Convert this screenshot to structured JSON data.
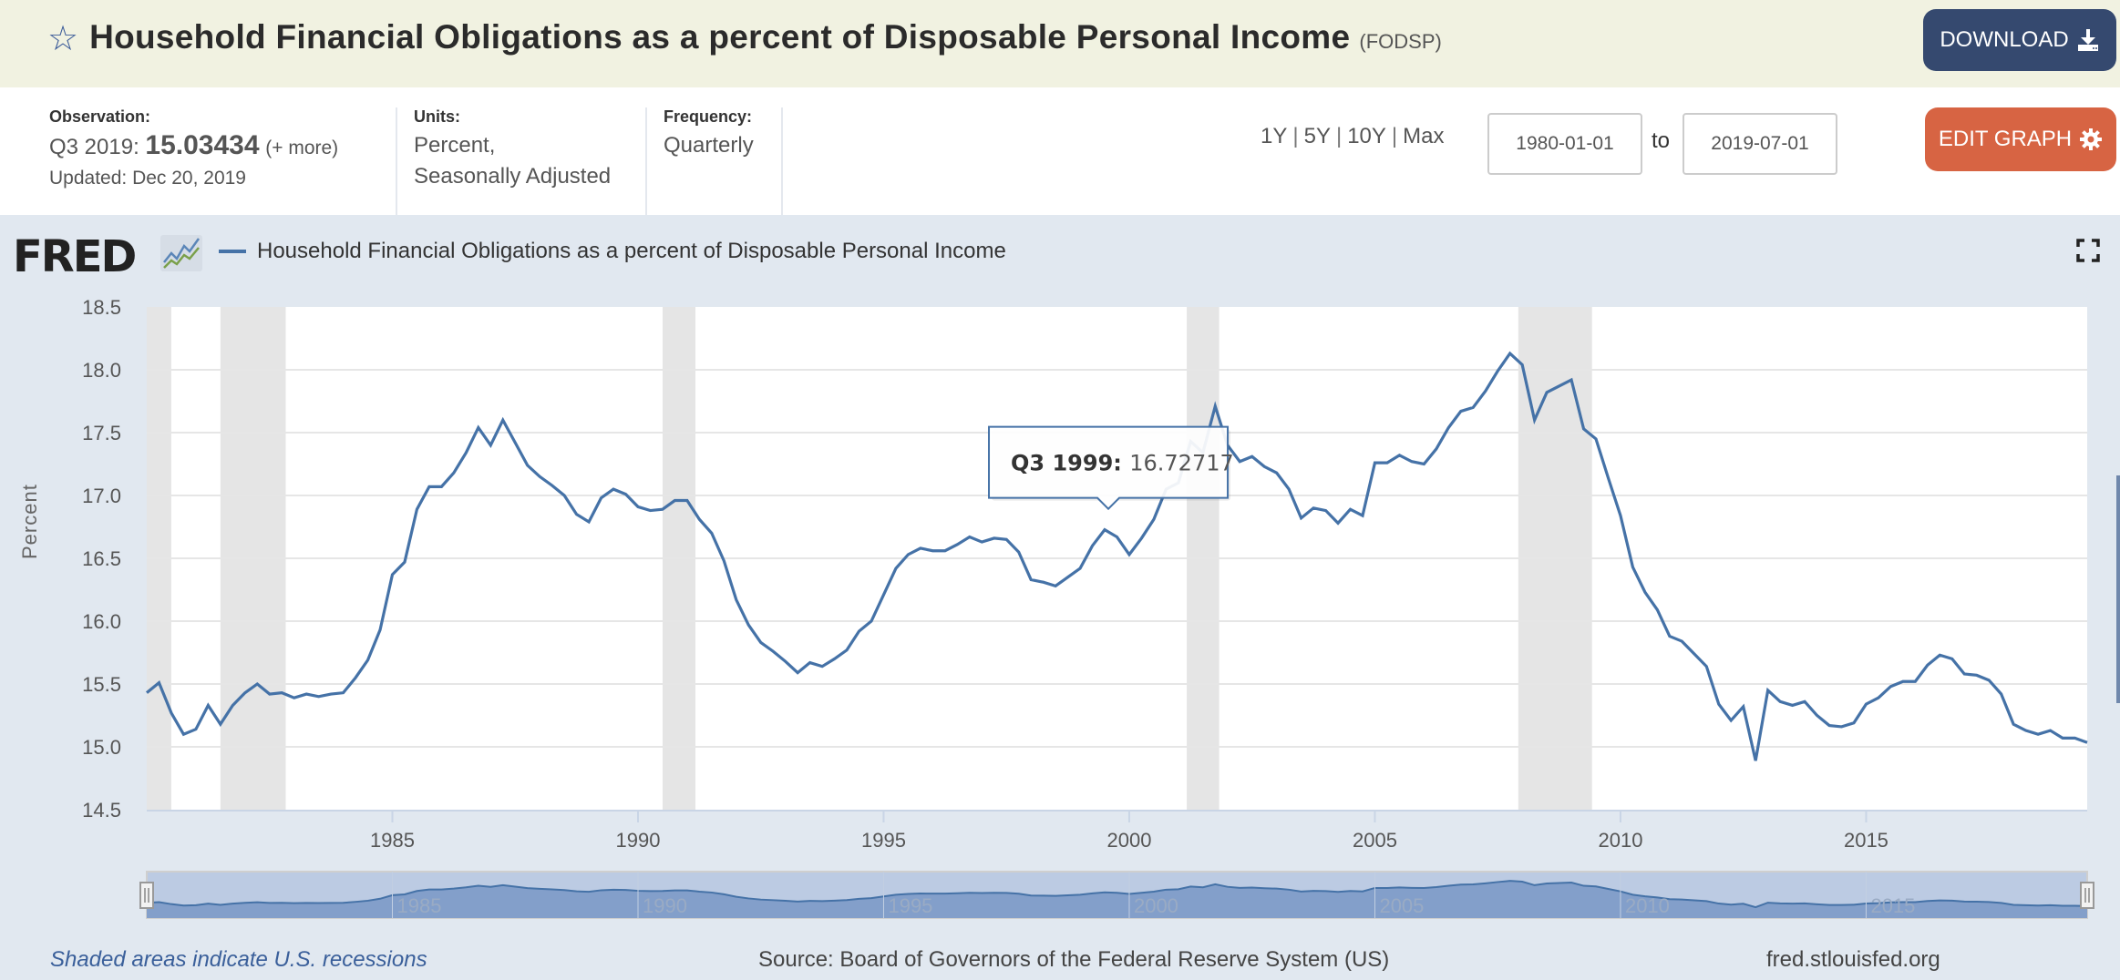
{
  "header": {
    "title": "Household Financial Obligations as a percent of Disposable Personal Income",
    "series_id": "(FODSP)",
    "favorite_icon": "star-outline-icon",
    "download_label": "DOWNLOAD",
    "download_icon": "download-icon"
  },
  "info": {
    "observation_label": "Observation:",
    "observation_period": "Q3 2019:",
    "observation_value": "15.03434",
    "observation_more": "(+ more)",
    "updated": "Updated: Dec 20, 2019",
    "units_label": "Units:",
    "units_line1": "Percent,",
    "units_line2": "Seasonally Adjusted",
    "frequency_label": "Frequency:",
    "frequency_value": "Quarterly"
  },
  "range_controls": {
    "presets": [
      "1Y",
      "5Y",
      "10Y",
      "Max"
    ],
    "start_date": "1980-01-01",
    "to_label": "to",
    "end_date": "2019-07-01",
    "edit_graph_label": "EDIT GRAPH",
    "edit_graph_icon": "gear-icon"
  },
  "chart_header": {
    "logo_text": "FRED",
    "legend_label": "Household Financial Obligations as a percent of Disposable Personal Income",
    "fullscreen_icon": "fullscreen-icon"
  },
  "tooltip": {
    "period": "Q3 1999:",
    "value": "16.72717"
  },
  "footer": {
    "recession_note": "Shaded areas indicate U.S. recessions",
    "source": "Source: Board of Governors of the Federal Reserve System (US)",
    "url": "fred.stlouisfed.org"
  },
  "colors": {
    "series": "#4572a7",
    "recession": "#e5e5e5",
    "download_button": "#35496f",
    "edit_button": "#d76443",
    "background": "#e1e8f0"
  },
  "chart_data": {
    "type": "line",
    "title": "Household Financial Obligations as a percent of Disposable Personal Income",
    "xlabel": "",
    "ylabel": "Percent",
    "ylim": [
      14.5,
      18.5
    ],
    "yticks": [
      "14.5",
      "15.0",
      "15.5",
      "16.0",
      "16.5",
      "17.0",
      "17.5",
      "18.0",
      "18.5"
    ],
    "xticks": [
      "1985",
      "1990",
      "1995",
      "2000",
      "2005",
      "2010",
      "2015"
    ],
    "navigator_labels": [
      "1985",
      "1990",
      "1995",
      "2000",
      "2005",
      "2010",
      "2015"
    ],
    "xlim": [
      "1980-01-01",
      "2019-07-01"
    ],
    "grid": true,
    "legend_position": "top-left",
    "start": {
      "year": 1980,
      "quarter": 1
    },
    "frequency": "quarterly",
    "recessions": [
      {
        "start": 1980.0,
        "end": 1980.5
      },
      {
        "start": 1981.5,
        "end": 1982.83
      },
      {
        "start": 1990.5,
        "end": 1991.17
      },
      {
        "start": 2001.17,
        "end": 2001.83
      },
      {
        "start": 2007.92,
        "end": 2009.42
      }
    ],
    "series": [
      {
        "name": "Household Financial Obligations as a percent of Disposable Personal Income",
        "values": [
          15.43,
          15.51,
          15.27,
          15.1,
          15.14,
          15.33,
          15.18,
          15.33,
          15.43,
          15.5,
          15.42,
          15.43,
          15.39,
          15.42,
          15.4,
          15.42,
          15.43,
          15.55,
          15.69,
          15.93,
          16.37,
          16.47,
          16.89,
          17.07,
          17.07,
          17.18,
          17.34,
          17.54,
          17.4,
          17.6,
          17.42,
          17.24,
          17.15,
          17.08,
          17.0,
          16.85,
          16.79,
          16.98,
          17.05,
          17.01,
          16.91,
          16.88,
          16.89,
          16.96,
          16.96,
          16.81,
          16.7,
          16.48,
          16.17,
          15.97,
          15.83,
          15.76,
          15.68,
          15.59,
          15.67,
          15.64,
          15.7,
          15.77,
          15.92,
          16.0,
          16.21,
          16.42,
          16.53,
          16.58,
          16.56,
          16.56,
          16.61,
          16.67,
          16.63,
          16.66,
          16.65,
          16.55,
          16.33,
          16.31,
          16.28,
          16.35,
          16.42,
          16.6,
          16.72717,
          16.67,
          16.53,
          16.66,
          16.81,
          17.05,
          17.1,
          17.43,
          17.34,
          17.71,
          17.4,
          17.27,
          17.31,
          17.23,
          17.18,
          17.05,
          16.82,
          16.9,
          16.88,
          16.78,
          16.89,
          16.84,
          17.26,
          17.26,
          17.32,
          17.27,
          17.25,
          17.37,
          17.54,
          17.67,
          17.7,
          17.83,
          17.99,
          18.13,
          18.04,
          17.6,
          17.82,
          17.87,
          17.92,
          17.53,
          17.45,
          17.14,
          16.84,
          16.43,
          16.23,
          16.09,
          15.88,
          15.84,
          15.74,
          15.64,
          15.34,
          15.21,
          15.32,
          14.89,
          15.45,
          15.36,
          15.33,
          15.36,
          15.25,
          15.17,
          15.16,
          15.19,
          15.34,
          15.39,
          15.48,
          15.52,
          15.52,
          15.65,
          15.73,
          15.7,
          15.58,
          15.57,
          15.53,
          15.42,
          15.18,
          15.13,
          15.1,
          15.13,
          15.07,
          15.07,
          15.03434
        ]
      }
    ],
    "highlighted_point": {
      "label": "Q3 1999",
      "value": 16.72717
    }
  }
}
